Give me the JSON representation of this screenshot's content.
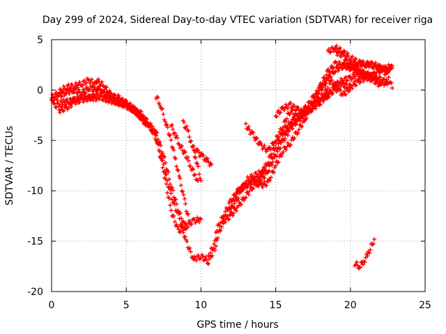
{
  "chart_data": {
    "type": "scatter",
    "title": "Day 299 of 2024, Sidereal Day-to-day VTEC variation (SDTVAR) for receiver riga",
    "xlabel": "GPS time / hours",
    "ylabel": "SDTVAR / TECUs",
    "xlim": [
      0,
      25
    ],
    "ylim": [
      -20,
      5
    ],
    "xticks": [
      "0",
      "5",
      "10",
      "15",
      "20",
      "25"
    ],
    "yticks": [
      "5",
      "0",
      "-5",
      "-10",
      "-15",
      "-20"
    ],
    "xtick_values": [
      0,
      5,
      10,
      15,
      20,
      25
    ],
    "ytick_values": [
      5,
      0,
      -5,
      -10,
      -15,
      -20
    ],
    "grid": true,
    "marker": "+",
    "color": "#ff0000",
    "series": [
      {
        "x": [
          0.0,
          0.5,
          1.0,
          1.5,
          2.0,
          2.5,
          3.0,
          3.5,
          4.0,
          4.5,
          5.0,
          5.5,
          6.0,
          6.5,
          7.0,
          7.5,
          8.0,
          8.5,
          9.0,
          9.5,
          10.0,
          10.5,
          11.0
        ],
        "y": [
          -0.8,
          -0.2,
          0.3,
          0.4,
          0.6,
          1.0,
          0.5,
          -0.5,
          -0.8,
          -1.2,
          -1.5,
          -2.0,
          -2.6,
          -3.2,
          -4.5,
          -7.5,
          -10.5,
          -12.5,
          -15.0,
          -16.8,
          -16.5,
          -17.0,
          -15.5
        ]
      },
      {
        "x": [
          0.0,
          0.5,
          1.0,
          1.5,
          2.0,
          2.5,
          3.0,
          3.5,
          4.0,
          4.5,
          5.0,
          5.5,
          6.0,
          6.5,
          7.0,
          7.5,
          8.0,
          8.5,
          9.0,
          9.5,
          10.0
        ],
        "y": [
          -1.2,
          -0.6,
          -0.2,
          0.0,
          -0.3,
          0.2,
          0.0,
          -0.3,
          -0.6,
          -0.8,
          -1.4,
          -2.0,
          -2.8,
          -3.4,
          -4.8,
          -8.0,
          -12.0,
          -14.0,
          -13.5,
          -13.0,
          -12.8
        ]
      },
      {
        "x": [
          0.2,
          0.8,
          1.5,
          2.2,
          2.8,
          3.2,
          3.8,
          4.5,
          5.0,
          5.5,
          6.0,
          6.5,
          7.0,
          7.5,
          8.0,
          8.5,
          9.0
        ],
        "y": [
          -1.6,
          -1.2,
          -1.0,
          -0.6,
          -0.9,
          -0.7,
          -1.0,
          -1.3,
          -1.6,
          -2.0,
          -2.4,
          -3.6,
          -4.2,
          -6.5,
          -9.5,
          -12.0,
          -13.8
        ]
      },
      {
        "x": [
          0.5,
          1.0,
          1.5,
          2.0,
          2.5,
          3.0
        ],
        "y": [
          -2.0,
          -1.8,
          -1.2,
          -1.0,
          -0.8,
          -0.4
        ]
      },
      {
        "x": [
          3.0,
          3.5,
          4.0,
          4.5,
          5.0,
          5.5,
          6.0,
          6.3
        ],
        "y": [
          1.0,
          0.4,
          -0.5,
          -1.0,
          -1.3,
          -1.8,
          -2.6,
          -3.5
        ]
      },
      {
        "x": [
          7.0,
          7.3,
          7.6,
          8.0,
          8.3,
          8.6,
          8.9,
          9.2
        ],
        "y": [
          -0.6,
          -1.5,
          -3.0,
          -5.0,
          -7.0,
          -9.0,
          -11.0,
          -13.0
        ]
      },
      {
        "x": [
          8.0,
          8.3,
          8.6,
          9.0,
          9.3,
          9.6,
          9.8
        ],
        "y": [
          -3.5,
          -4.5,
          -5.5,
          -6.5,
          -7.5,
          -8.5,
          -9.0
        ]
      },
      {
        "x": [
          8.8,
          9.1,
          9.4,
          9.7,
          10.0
        ],
        "y": [
          -3.2,
          -4.0,
          -5.5,
          -7.0,
          -9.0
        ]
      },
      {
        "x": [
          9.5,
          9.8,
          10.1,
          10.4,
          10.7
        ],
        "y": [
          -5.8,
          -6.2,
          -6.6,
          -7.0,
          -7.4
        ]
      },
      {
        "x": [
          10.5,
          11.0,
          11.5,
          12.0,
          12.5,
          13.0,
          13.5,
          14.0,
          14.5,
          15.0,
          15.5,
          16.0,
          16.5,
          17.0,
          17.5,
          18.0,
          18.5,
          19.0,
          19.5,
          20.0,
          20.5,
          21.0,
          21.5,
          22.0
        ],
        "y": [
          -16.5,
          -15.0,
          -13.0,
          -12.5,
          -11.5,
          -10.5,
          -9.5,
          -9.0,
          -8.0,
          -6.5,
          -5.0,
          -3.8,
          -3.0,
          -2.2,
          -1.8,
          -1.2,
          -0.5,
          0.5,
          1.0,
          1.2,
          1.5,
          1.3,
          1.0,
          0.5
        ]
      },
      {
        "x": [
          11.0,
          11.5,
          12.0,
          12.5,
          13.0,
          13.5,
          14.0,
          14.5,
          15.0,
          15.5,
          16.0,
          16.5,
          17.0,
          17.5,
          18.0,
          18.5,
          19.0,
          19.5,
          20.0,
          20.5,
          21.0,
          21.5,
          22.0,
          22.5
        ],
        "y": [
          -14.0,
          -12.5,
          -11.0,
          -10.0,
          -9.5,
          -9.0,
          -8.5,
          -7.0,
          -5.5,
          -4.0,
          -3.2,
          -2.5,
          -1.8,
          -0.8,
          0.2,
          1.2,
          2.0,
          2.4,
          2.2,
          1.8,
          1.6,
          1.4,
          1.0,
          0.8
        ]
      },
      {
        "x": [
          11.5,
          12.0,
          12.5,
          13.0,
          13.5,
          14.0,
          14.5,
          15.0,
          15.5,
          16.0,
          16.5,
          17.0,
          17.5,
          18.0,
          18.5,
          19.0,
          19.5,
          20.0,
          20.5,
          21.0,
          21.5,
          22.0,
          22.5,
          22.8
        ],
        "y": [
          -13.0,
          -11.5,
          -10.0,
          -9.5,
          -9.0,
          -9.5,
          -9.2,
          -7.5,
          -6.0,
          -5.2,
          -4.0,
          -2.8,
          -1.2,
          0.5,
          1.8,
          2.6,
          2.5,
          2.4,
          2.6,
          2.6,
          2.4,
          2.2,
          2.0,
          2.2
        ]
      },
      {
        "x": [
          12.0,
          12.5,
          13.0,
          13.5,
          14.0,
          14.5,
          15.0,
          15.5,
          16.0,
          16.5,
          17.0,
          17.5,
          18.0,
          18.5,
          19.0,
          19.5,
          20.0,
          20.5,
          21.0,
          21.5,
          22.0,
          22.8
        ],
        "y": [
          -12.0,
          -10.5,
          -9.0,
          -8.5,
          -8.2,
          -7.5,
          -6.0,
          -4.5,
          -3.5,
          -2.8,
          -2.2,
          -1.2,
          -0.8,
          -0.5,
          0.0,
          0.5,
          0.3,
          0.8,
          1.2,
          1.5,
          2.0,
          2.4
        ]
      },
      {
        "x": [
          18.5,
          19.0,
          19.5,
          20.0,
          20.5,
          21.0,
          21.5,
          22.0,
          22.5,
          22.8
        ],
        "y": [
          3.8,
          4.2,
          3.8,
          3.2,
          2.8,
          2.5,
          2.6,
          2.2,
          1.5,
          0.2
        ]
      },
      {
        "x": [
          19.0,
          19.5,
          20.0,
          20.5,
          21.0,
          21.5,
          22.0,
          22.5
        ],
        "y": [
          3.8,
          3.4,
          2.6,
          2.0,
          1.6,
          1.2,
          0.8,
          0.6
        ]
      },
      {
        "x": [
          13.0,
          13.5,
          14.0,
          14.5,
          15.0,
          15.5,
          16.0,
          16.5,
          17.0,
          17.5,
          18.0,
          18.5,
          19.0,
          19.5,
          20.0
        ],
        "y": [
          -3.5,
          -4.5,
          -5.5,
          -6.0,
          -5.0,
          -3.5,
          -2.0,
          -2.8,
          -2.0,
          -1.5,
          0.0,
          1.0,
          0.5,
          -0.5,
          0.2
        ]
      },
      {
        "x": [
          15.0,
          15.5,
          16.0,
          16.5,
          17.0,
          17.5,
          18.0,
          18.5
        ],
        "y": [
          -2.5,
          -1.8,
          -1.5,
          -2.0,
          -2.3,
          -1.8,
          -0.8,
          0.2
        ]
      },
      {
        "x": [
          20.3,
          20.6,
          20.9,
          21.2,
          21.4,
          21.6
        ],
        "y": [
          -17.2,
          -17.5,
          -17.0,
          -16.2,
          -15.5,
          -14.8
        ]
      }
    ]
  }
}
